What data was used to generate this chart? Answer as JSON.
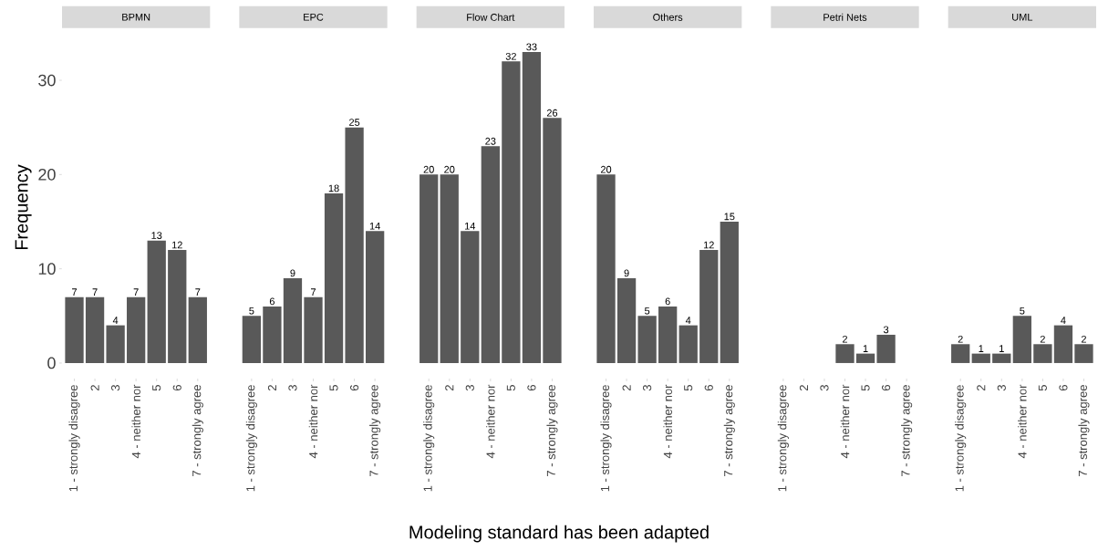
{
  "chart_data": [
    {
      "type": "bar",
      "title": "BPMN",
      "ylabel": "Frequency",
      "categories": [
        "1 - strongly disagree",
        "2",
        "3",
        "4 - neither nor",
        "5",
        "6",
        "7 - strongly agree"
      ],
      "values": [
        7,
        7,
        4,
        7,
        13,
        12,
        7
      ],
      "color": "#595959",
      "ylim": [
        -1.65,
        34.65
      ],
      "yticks": [
        0,
        10,
        20,
        30
      ],
      "data_labels": true
    },
    {
      "type": "bar",
      "title": "EPC",
      "categories": [
        "1 - strongly disagree",
        "2",
        "3",
        "4 - neither nor",
        "5",
        "6",
        "7 - strongly agree"
      ],
      "values": [
        5,
        6,
        9,
        7,
        18,
        25,
        14
      ],
      "color": "#595959",
      "tick_labels": "x",
      "data_labels": true
    },
    {
      "type": "bar",
      "title": "Flow Chart",
      "xlabel": "Modeling standard has been adapted",
      "categories": [
        "1 - strongly disagree",
        "2",
        "3",
        "4 - neither nor",
        "5",
        "6",
        "7 - strongly agree"
      ],
      "values": [
        20,
        20,
        14,
        23,
        32,
        33,
        26
      ],
      "color": "#595959",
      "tick_labels": "x",
      "data_labels": true
    },
    {
      "type": "bar",
      "title": "Others",
      "categories": [
        "1 - strongly disagree",
        "2",
        "3",
        "4 - neither nor",
        "5",
        "6",
        "7 - strongly agree"
      ],
      "values": [
        20,
        9,
        5,
        6,
        4,
        12,
        15
      ],
      "color": "#595959",
      "tick_labels": "x",
      "data_labels": true
    },
    {
      "type": "bar",
      "title": "Petri Nets",
      "categories": [
        "1 - strongly disagree",
        "2",
        "3",
        "4 - neither nor",
        "5",
        "6",
        "7 - strongly agree"
      ],
      "values": [
        null,
        null,
        null,
        2,
        1,
        3,
        null
      ],
      "color": "#595959",
      "tick_labels": "x",
      "data_labels": true
    },
    {
      "type": "bar",
      "title": "UML",
      "categories": [
        "1 - strongly disagree",
        "2",
        "3",
        "4 - neither nor",
        "5",
        "6",
        "7 - strongly agree"
      ],
      "values": [
        2,
        1,
        1,
        5,
        2,
        4,
        2
      ],
      "color": "#595959",
      "tick_labels": "x",
      "data_labels": true
    }
  ]
}
